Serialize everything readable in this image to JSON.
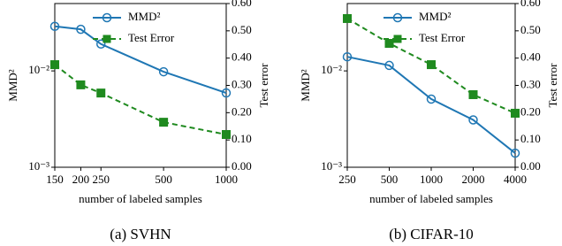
{
  "chart_data": [
    {
      "type": "line",
      "caption": "(a) SVHN",
      "xlabel": "number of labeled samples",
      "ylabel": "MMD²",
      "y2label": "Test error",
      "xscale": "log",
      "yscale": "log",
      "x": [
        150,
        200,
        250,
        500,
        1000
      ],
      "xlim": [
        150,
        1000
      ],
      "xticks": [
        150,
        200,
        250,
        500,
        1000
      ],
      "ylim": [
        0.001,
        0.05
      ],
      "yticks": [
        {
          "value": 0.001,
          "label": "10⁻³"
        },
        {
          "value": 0.01,
          "label": "10⁻²"
        }
      ],
      "y2lim": [
        0,
        0.6
      ],
      "y2ticks": [
        {
          "value": 0,
          "label": "0.00"
        },
        {
          "value": 0.1,
          "label": "0.10"
        },
        {
          "value": 0.2,
          "label": "0.20"
        },
        {
          "value": 0.3,
          "label": "0.30"
        },
        {
          "value": 0.4,
          "label": "0.40"
        },
        {
          "value": 0.5,
          "label": "0.50"
        },
        {
          "value": 0.6,
          "label": "0.60"
        }
      ],
      "series": [
        {
          "name": "MMD²",
          "color": "#1f77b4",
          "marker": "circle",
          "dashed": false,
          "values": [
            0.029,
            0.027,
            0.019,
            0.0098,
            0.0059
          ]
        },
        {
          "name": "Test Error",
          "color": "#1f8a1f",
          "marker": "square",
          "dashed": true,
          "axis": "y2",
          "values": [
            0.376,
            0.302,
            0.272,
            0.165,
            0.12
          ]
        }
      ]
    },
    {
      "type": "line",
      "caption": "(b) CIFAR-10",
      "xlabel": "number of labeled samples",
      "ylabel": "MMD²",
      "y2label": "Test error",
      "xscale": "log",
      "yscale": "log",
      "x": [
        250,
        500,
        1000,
        2000,
        4000
      ],
      "xlim": [
        250,
        4000
      ],
      "xticks": [
        250,
        500,
        1000,
        2000,
        4000
      ],
      "ylim": [
        0.001,
        0.05
      ],
      "yticks": [
        {
          "value": 0.001,
          "label": "10⁻³"
        },
        {
          "value": 0.01,
          "label": "10⁻²"
        }
      ],
      "y2lim": [
        0,
        0.6
      ],
      "y2ticks": [
        {
          "value": 0,
          "label": "0.00"
        },
        {
          "value": 0.1,
          "label": "0.10"
        },
        {
          "value": 0.2,
          "label": "0.20"
        },
        {
          "value": 0.3,
          "label": "0.30"
        },
        {
          "value": 0.4,
          "label": "0.40"
        },
        {
          "value": 0.5,
          "label": "0.50"
        },
        {
          "value": 0.6,
          "label": "0.60"
        }
      ],
      "series": [
        {
          "name": "MMD²",
          "color": "#1f77b4",
          "marker": "circle",
          "dashed": false,
          "values": [
            0.014,
            0.0114,
            0.0051,
            0.0031,
            0.0014
          ]
        },
        {
          "name": "Test Error",
          "color": "#1f8a1f",
          "marker": "square",
          "dashed": true,
          "axis": "y2",
          "values": [
            0.545,
            0.454,
            0.376,
            0.266,
            0.198
          ]
        }
      ]
    }
  ]
}
